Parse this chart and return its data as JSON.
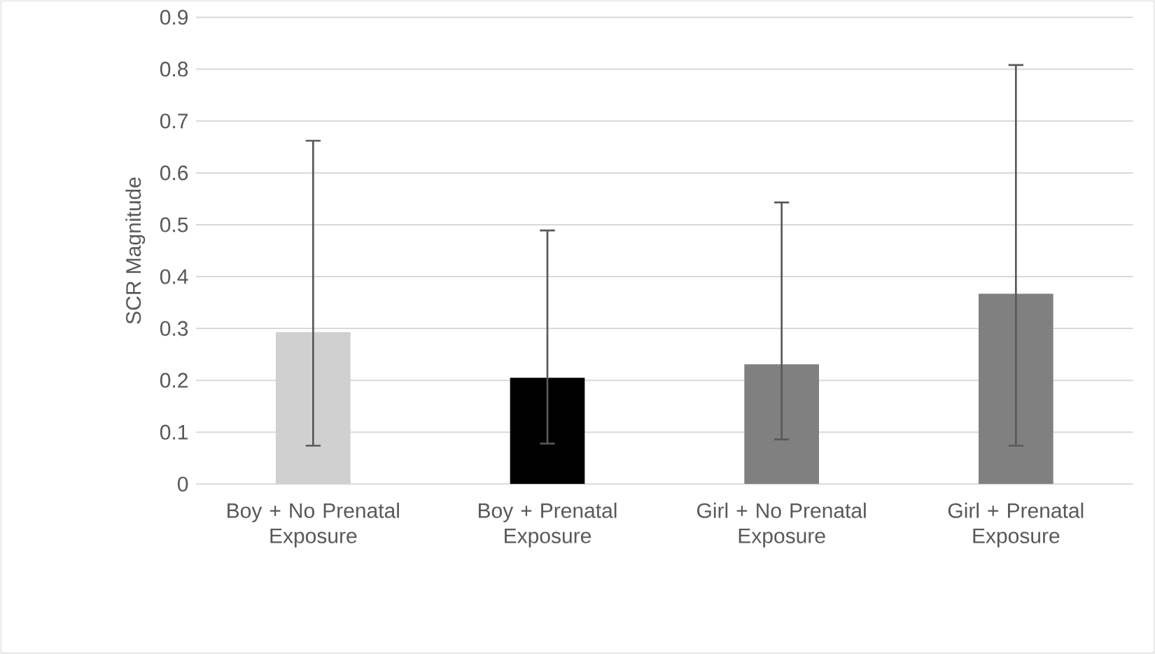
{
  "chart_data": {
    "type": "bar",
    "ylabel": "SCR Magnitude",
    "categories": [
      "Boy + No Prenatal Exposure",
      "Boy + Prenatal Exposure",
      "Girl + No Prenatal Exposure",
      "Girl + Prenatal Exposure"
    ],
    "values": [
      0.293,
      0.205,
      0.231,
      0.367
    ],
    "errors": [
      [
        0.074,
        0.662
      ],
      [
        0.078,
        0.489
      ],
      [
        0.086,
        0.543
      ],
      [
        0.074,
        0.808
      ]
    ],
    "colors": [
      "#d0d0d0",
      "#000000",
      "#808080",
      "#808080"
    ],
    "ylim": [
      0,
      0.9
    ],
    "yticks": [
      0,
      0.1,
      0.2,
      0.3,
      0.4,
      0.5,
      0.6,
      0.7,
      0.8,
      0.9
    ],
    "grid": "y"
  }
}
